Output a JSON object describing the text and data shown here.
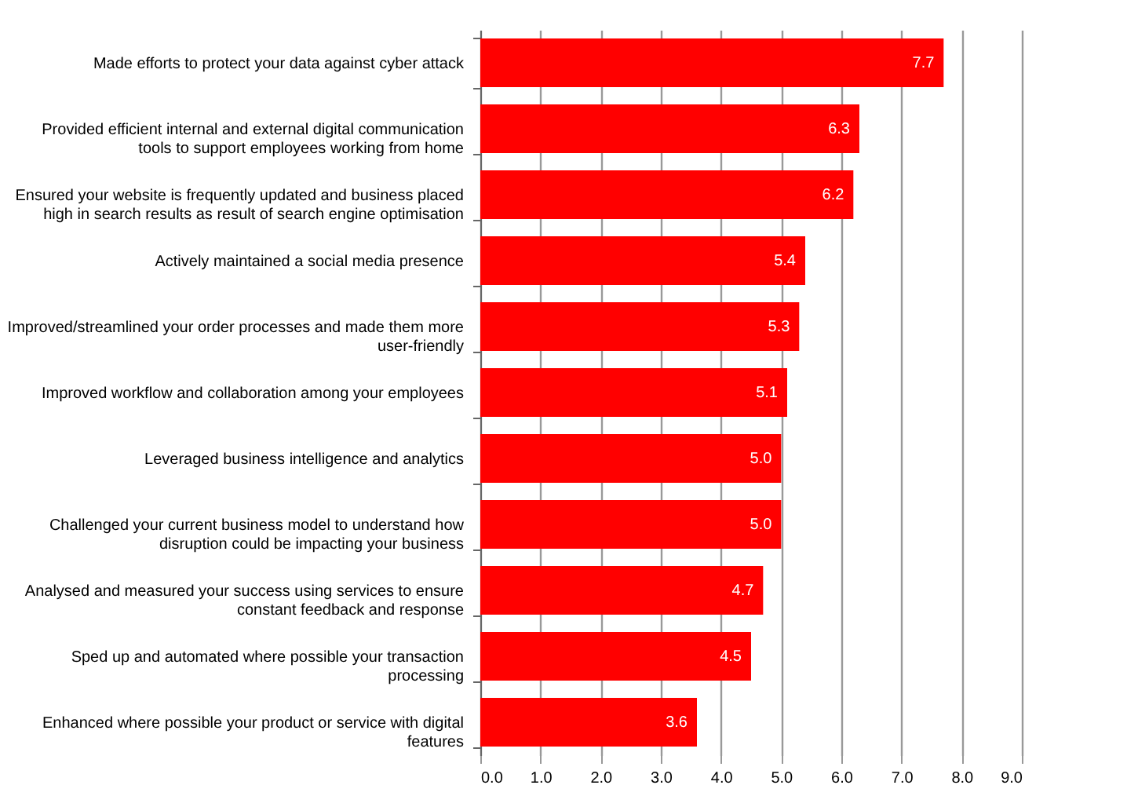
{
  "chart_data": {
    "type": "bar",
    "orientation": "horizontal",
    "categories": [
      "Made efforts to protect your data against cyber attack",
      "Provided efficient internal and external digital communication tools to support employees working from home",
      "Ensured your website is frequently updated and business placed high in search results as result of search engine optimisation",
      "Actively maintained a social media presence",
      "Improved/streamlined your order processes and made them more user-friendly",
      "Improved workflow and collaboration among your employees",
      "Leveraged business intelligence and analytics",
      "Challenged your current business model to understand how disruption could be impacting your business",
      "Analysed and measured your success using services to ensure constant feedback and response",
      "Sped up and automated where possible your transaction processing",
      "Enhanced where possible your product or service with digital features"
    ],
    "values": [
      7.7,
      6.3,
      6.2,
      5.4,
      5.3,
      5.1,
      5.0,
      5.0,
      4.7,
      4.5,
      3.6
    ],
    "value_labels": [
      "7.7",
      "6.3",
      "6.2",
      "5.4",
      "5.3",
      "5.1",
      "5.0",
      "5.0",
      "4.7",
      "4.5",
      "3.6"
    ],
    "color": "#ff0000",
    "xlim": [
      0,
      9
    ],
    "xticks": [
      {
        "value": 0,
        "label": "0.0"
      },
      {
        "value": 1,
        "label": "1.0"
      },
      {
        "value": 2,
        "label": "2.0"
      },
      {
        "value": 3,
        "label": "3.0"
      },
      {
        "value": 4,
        "label": "4.0"
      },
      {
        "value": 5,
        "label": "5.0"
      },
      {
        "value": 6,
        "label": "6.0"
      },
      {
        "value": 7,
        "label": "7.0"
      },
      {
        "value": 8,
        "label": "8.0"
      },
      {
        "value": 9,
        "label": "9.0"
      }
    ],
    "grid": "x"
  }
}
